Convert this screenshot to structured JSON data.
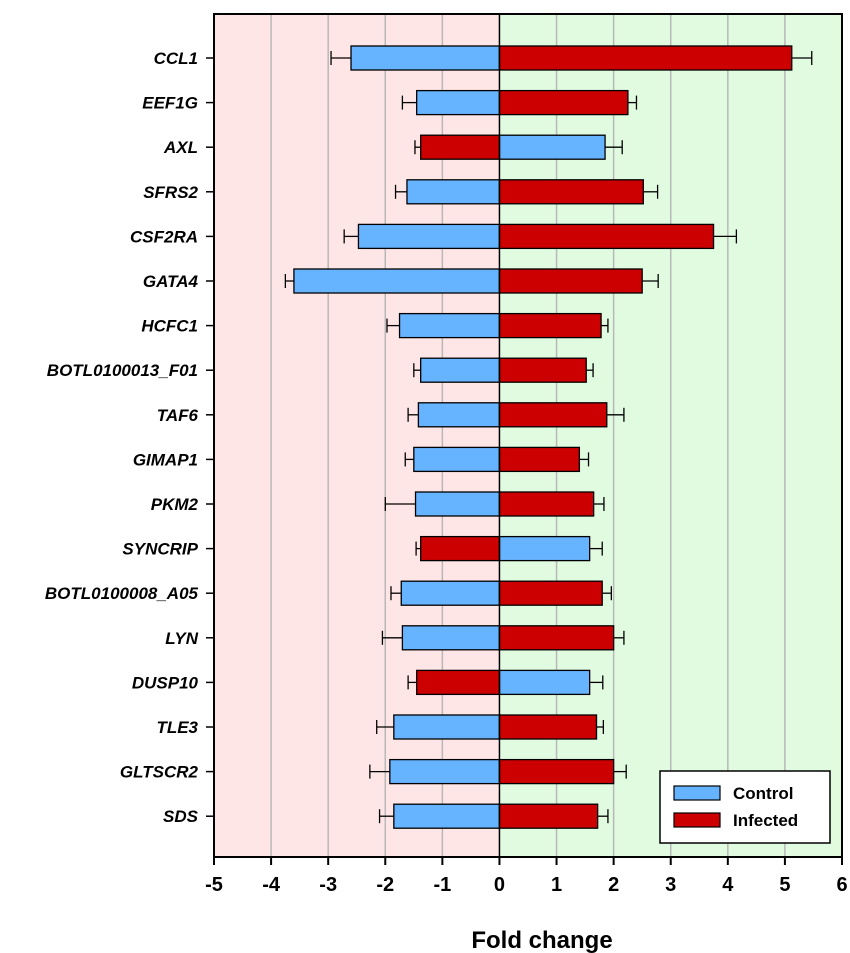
{
  "chart_data": {
    "type": "bar",
    "orientation": "horizontal",
    "xlabel": "Fold change",
    "ylabel": "",
    "xlim": [
      -5,
      6
    ],
    "xticks": [
      -5,
      -4,
      -3,
      -2,
      -1,
      0,
      1,
      2,
      3,
      4,
      5,
      6
    ],
    "grid": true,
    "background": {
      "negative": "#ffe6e6",
      "positive": "#e0fbe0"
    },
    "legend": {
      "position": "bottom-right",
      "entries": [
        {
          "label": "Control",
          "color": "#66b3ff"
        },
        {
          "label": "Infected",
          "color": "#cc0000"
        }
      ]
    },
    "categories": [
      "CCL1",
      "EEF1G",
      "AXL",
      "SFRS2",
      "CSF2RA",
      "GATA4",
      "HCFC1",
      "BOTL0100013_F01",
      "TAF6",
      "GIMAP1",
      "PKM2",
      "SYNCRIP",
      "BOTL0100008_A05",
      "LYN",
      "DUSP10",
      "TLE3",
      "GLTSCR2",
      "SDS"
    ],
    "series": [
      {
        "name": "Control",
        "color": "#66b3ff",
        "values": [
          -2.6,
          -1.45,
          1.85,
          -1.62,
          -2.47,
          -3.6,
          -1.75,
          -1.38,
          -1.42,
          -1.5,
          -1.47,
          1.58,
          -1.72,
          -1.7,
          1.58,
          -1.85,
          -1.92,
          -1.85
        ],
        "errors": [
          0.35,
          0.25,
          0.3,
          0.2,
          0.25,
          0.15,
          0.22,
          0.12,
          0.18,
          0.15,
          0.53,
          0.22,
          0.18,
          0.35,
          0.23,
          0.3,
          0.35,
          0.25
        ]
      },
      {
        "name": "Infected",
        "color": "#cc0000",
        "values": [
          5.12,
          2.25,
          -1.38,
          2.52,
          3.75,
          2.5,
          1.78,
          1.52,
          1.88,
          1.4,
          1.65,
          -1.38,
          1.8,
          2,
          -1.45,
          1.7,
          2,
          1.72
        ],
        "errors": [
          0.35,
          0.15,
          0.1,
          0.25,
          0.4,
          0.28,
          0.12,
          0.12,
          0.3,
          0.16,
          0.18,
          0.08,
          0.16,
          0.18,
          0.15,
          0.12,
          0.22,
          0.18
        ]
      }
    ]
  }
}
